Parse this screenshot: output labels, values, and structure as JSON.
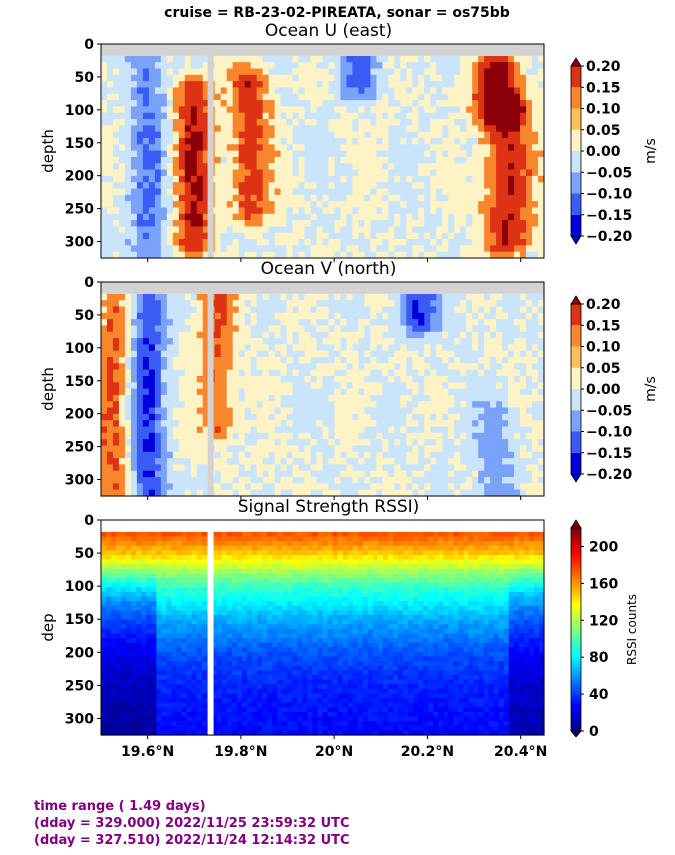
{
  "suptitle": "cruise = RB-23-02-PIREATA,  sonar = os75bb",
  "footer": {
    "line1": "time range ( 1.49 days)",
    "line2": "(dday = 329.000) 2022/11/25 23:59:32 UTC",
    "line3": "(dday = 327.510) 2022/11/24 12:14:32 UTC"
  },
  "colors": {
    "footer_text": "#800080",
    "gap": "#d3d3d3",
    "gap_rssi": "#ffffff"
  },
  "chart_data": [
    {
      "type": "heatmap",
      "title": "Ocean U (east)",
      "ylabel": "depth",
      "yticks": [
        0,
        50,
        100,
        150,
        200,
        250,
        300
      ],
      "ylim": [
        325,
        0
      ],
      "xlim": [
        19.5,
        20.45
      ],
      "x_tick_values": [
        19.6,
        19.8,
        20.0,
        20.2,
        20.4
      ],
      "x_tick_labels_shown": false,
      "colorbar": {
        "label": "m/s",
        "levels": [
          -0.2,
          -0.15,
          -0.1,
          -0.05,
          0.0,
          0.05,
          0.1,
          0.15,
          0.2
        ],
        "tick_labels": [
          "−0.20",
          "−0.15",
          "−0.10",
          "−0.05",
          "0.00",
          "0.05",
          "0.10",
          "0.15",
          "0.20"
        ],
        "colors": [
          "#0000dd",
          "#3a5cf5",
          "#7aa2f8",
          "#c9e4fb",
          "#fef3c4",
          "#fcc05a",
          "#f7862d",
          "#dd3214",
          "#8b0008"
        ],
        "extend": "both"
      },
      "gap_x": 19.735,
      "blank_depth_top": 18,
      "features": [
        {
          "x": 19.6,
          "depth": [
            20,
            325
          ],
          "value": -0.1
        },
        {
          "x": 19.7,
          "depth": [
            70,
            300
          ],
          "value": 0.15
        },
        {
          "x": 19.82,
          "depth": [
            60,
            250
          ],
          "value": 0.13
        },
        {
          "x": 20.05,
          "depth": [
            20,
            60
          ],
          "value": -0.12
        },
        {
          "x": 20.35,
          "depth": [
            40,
            100
          ],
          "value": 0.18
        },
        {
          "x": 20.37,
          "depth": [
            100,
            300
          ],
          "value": 0.15
        }
      ]
    },
    {
      "type": "heatmap",
      "title": "Ocean V (north)",
      "ylabel": "depth",
      "yticks": [
        0,
        50,
        100,
        150,
        200,
        250,
        300
      ],
      "ylim": [
        325,
        0
      ],
      "xlim": [
        19.5,
        20.45
      ],
      "x_tick_values": [
        19.6,
        19.8,
        20.0,
        20.2,
        20.4
      ],
      "x_tick_labels_shown": false,
      "colorbar": {
        "label": "m/s",
        "levels": [
          -0.2,
          -0.15,
          -0.1,
          -0.05,
          0.0,
          0.05,
          0.1,
          0.15,
          0.2
        ],
        "tick_labels": [
          "−0.20",
          "−0.15",
          "−0.10",
          "−0.05",
          "0.00",
          "0.05",
          "0.10",
          "0.15",
          "0.20"
        ],
        "colors": [
          "#0000dd",
          "#3a5cf5",
          "#7aa2f8",
          "#c9e4fb",
          "#fef3c4",
          "#fcc05a",
          "#f7862d",
          "#dd3214",
          "#8b0008"
        ],
        "extend": "both"
      },
      "gap_x": 19.735,
      "blank_depth_top": 18,
      "features": [
        {
          "x": 19.53,
          "depth": [
            20,
            325
          ],
          "value": 0.1
        },
        {
          "x": 19.6,
          "depth": [
            20,
            325
          ],
          "value": -0.15
        },
        {
          "x": 19.75,
          "depth": [
            20,
            220
          ],
          "value": 0.1
        },
        {
          "x": 20.18,
          "depth": [
            20,
            60
          ],
          "value": -0.15
        },
        {
          "x": 20.35,
          "depth": [
            200,
            325
          ],
          "value": -0.08
        }
      ]
    },
    {
      "type": "heatmap",
      "title": "Signal Strength RSSI)",
      "ylabel": "dep",
      "yticks": [
        0,
        50,
        100,
        150,
        200,
        250,
        300
      ],
      "ylim": [
        325,
        0
      ],
      "xlim": [
        19.5,
        20.45
      ],
      "x_tick_values": [
        19.6,
        19.8,
        20.0,
        20.2,
        20.4
      ],
      "x_tick_labels": [
        "19.6°N",
        "19.8°N",
        "20°N",
        "20.2°N",
        "20.4°N"
      ],
      "x_tick_labels_shown": true,
      "colorbar": {
        "label": "RSSI counts",
        "range": [
          0,
          220
        ],
        "ticks": [
          0,
          40,
          80,
          120,
          160,
          200
        ],
        "tick_labels": [
          "0",
          "40",
          "80",
          "120",
          "160",
          "200"
        ],
        "colormap": "jet"
      },
      "gap_x": 19.735,
      "blank_depth_top": 18,
      "profile": [
        {
          "depth": 20,
          "value": 175
        },
        {
          "depth": 50,
          "value": 150
        },
        {
          "depth": 75,
          "value": 120
        },
        {
          "depth": 100,
          "value": 95
        },
        {
          "depth": 150,
          "value": 65
        },
        {
          "depth": 200,
          "value": 45
        },
        {
          "depth": 250,
          "value": 35
        },
        {
          "depth": 300,
          "value": 30
        },
        {
          "depth": 325,
          "value": 28
        }
      ],
      "weak_zones": [
        {
          "x": [
            19.5,
            19.62
          ],
          "strength": -22
        },
        {
          "x": [
            20.37,
            20.45
          ],
          "strength": -18
        }
      ]
    }
  ]
}
